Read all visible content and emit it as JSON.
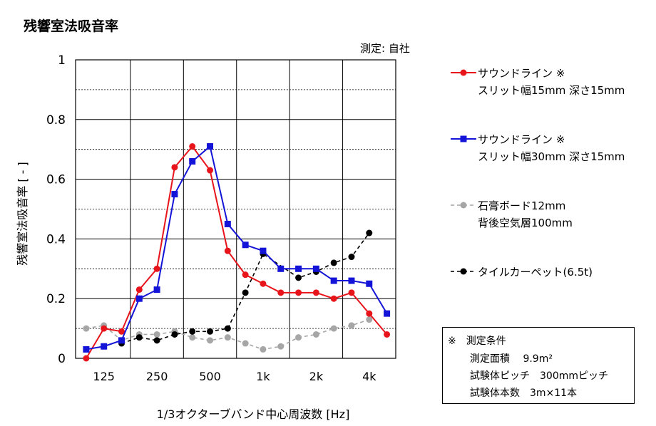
{
  "chart_data": {
    "type": "line",
    "title": "残響室法吸音率",
    "measured_by": "測定: 自社",
    "xlabel": "1/3オクターブバンド中心周波数 [Hz]",
    "ylabel": "残響室法吸音率 [ - ]",
    "x_tick_labels": [
      "125",
      "250",
      "500",
      "1k",
      "2k",
      "4k"
    ],
    "x": [
      100,
      125,
      160,
      200,
      250,
      315,
      400,
      500,
      630,
      800,
      1000,
      1250,
      1600,
      2000,
      2500,
      3150,
      4000,
      5000
    ],
    "ylim": [
      0,
      1
    ],
    "y_ticks": [
      "0",
      "0.2",
      "0.4",
      "0.6",
      "0.8",
      "1"
    ],
    "series": [
      {
        "name_line1": "サウンドライン ※",
        "name_line2": "スリット幅15mm 深さ15mm",
        "color": "#e8141c",
        "marker": "circle",
        "dash": "solid",
        "values": [
          0.0,
          0.1,
          0.09,
          0.23,
          0.3,
          0.64,
          0.71,
          0.63,
          0.36,
          0.28,
          0.25,
          0.22,
          0.22,
          0.22,
          0.2,
          0.22,
          0.15,
          0.08
        ]
      },
      {
        "name_line1": "サウンドライン ※",
        "name_line2": "スリット幅30mm 深さ15mm",
        "color": "#1414d8",
        "marker": "square",
        "dash": "solid",
        "values": [
          0.03,
          0.04,
          0.06,
          0.2,
          0.23,
          0.55,
          0.66,
          0.71,
          0.45,
          0.38,
          0.36,
          0.3,
          0.3,
          0.3,
          0.26,
          0.26,
          0.25,
          0.15
        ]
      },
      {
        "name_line1": "石膏ボード12mm",
        "name_line2": "背後空気層100mm",
        "color": "#a6a6a6",
        "marker": "circle",
        "dash": "dashed",
        "values": [
          0.1,
          0.11,
          0.06,
          0.08,
          0.08,
          0.09,
          0.07,
          0.06,
          0.07,
          0.05,
          0.03,
          0.04,
          0.07,
          0.08,
          0.1,
          0.11,
          0.13,
          null
        ]
      },
      {
        "name_line1": "タイルカーペット(6.5t)",
        "name_line2": "",
        "color": "#000000",
        "marker": "circle",
        "dash": "dashed",
        "values": [
          null,
          null,
          0.05,
          0.07,
          0.06,
          0.08,
          0.09,
          0.09,
          0.1,
          0.22,
          0.35,
          null,
          0.27,
          0.29,
          0.32,
          0.34,
          0.42,
          null
        ]
      }
    ],
    "grid": true
  },
  "conditions": {
    "header": "※　測定条件",
    "area": "測定面積　 9.9m²",
    "pitch": "試験体ピッチ　300mmピッチ",
    "count": "試験体本数　3m×11本"
  }
}
